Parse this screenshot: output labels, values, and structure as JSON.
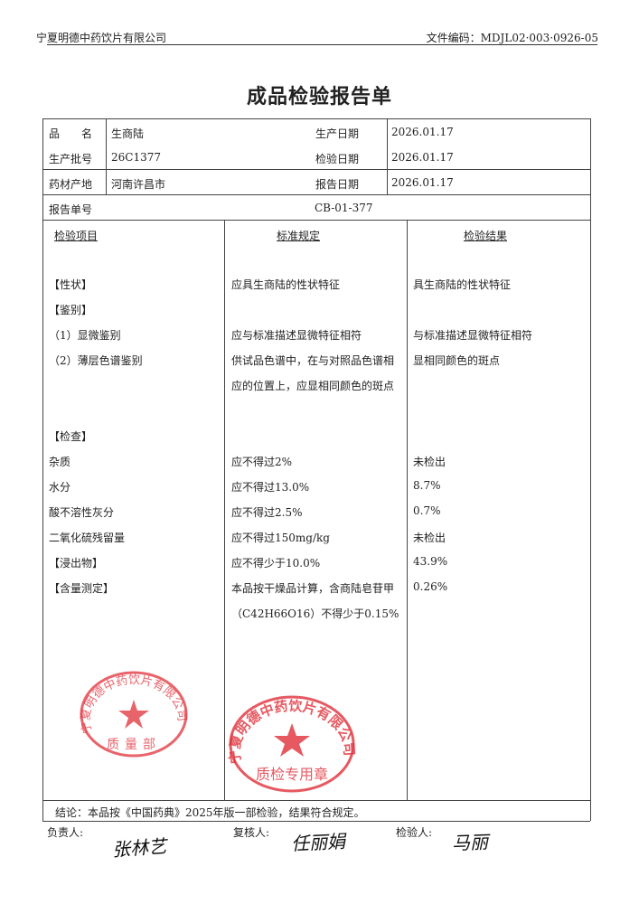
{
  "header": {
    "company": "宁夏明德中药饮片有限公司",
    "doc_code": "文件编码：MDJL02·003·0926-05"
  },
  "title": "成品检验报告单",
  "info": {
    "name_label": "品　　名",
    "name": "生商陆",
    "batch_label": "生产批号",
    "batch": "26C1377",
    "origin_label": "药材产地",
    "origin": "河南许昌市",
    "prod_date_label": "生产日期",
    "prod_date": "2026.01.17",
    "test_date_label": "检验日期",
    "test_date": "2026.01.17",
    "report_date_label": "报告日期",
    "report_date": "2026.01.17",
    "report_no_label": "报告单号",
    "report_no": "CB-01-377"
  },
  "columns": [
    "检验项目",
    "标准规定",
    "检验结果"
  ],
  "rows": [
    {
      "item": "【性状】",
      "standard": "应具生商陆的性状特征",
      "result": "具生商陆的性状特征"
    },
    {
      "item": "【鉴别】",
      "standard": "",
      "result": ""
    },
    {
      "item": "（1）显微鉴别",
      "standard": "应与标准描述显微特征相符",
      "result": "与标准描述显微特征相符"
    },
    {
      "item": "（2）薄层色谱鉴别",
      "standard": "供试品色谱中，在与对照品色谱相",
      "result": "显相同颜色的斑点"
    },
    {
      "item": "",
      "standard": "应的位置上，应显相同颜色的斑点",
      "result": ""
    },
    {
      "item": "【检查】",
      "standard": "",
      "result": ""
    },
    {
      "item": "杂质",
      "standard": "应不得过2%",
      "result": "未检出"
    },
    {
      "item": "水分",
      "standard": "应不得过13.0%",
      "result": "8.7%"
    },
    {
      "item": "酸不溶性灰分",
      "standard": "应不得过2.5%",
      "result": "0.7%"
    },
    {
      "item": "二氧化硫残留量",
      "standard": "应不得过150mg/kg",
      "result": "未检出"
    },
    {
      "item": "【浸出物】",
      "standard": "应不得少于10.0%",
      "result": "43.9%"
    },
    {
      "item": "【含量测定】",
      "standard": "本品按干燥品计算，含商陆皂苷甲",
      "result": "0.26%"
    },
    {
      "item": "",
      "standard": "（C42H66O16）不得少于0.15%",
      "result": ""
    }
  ],
  "conclusion": "结论：本品按《中国药典》2025年版一部检验，结果符合规定。",
  "signatures": {
    "responsible_label": "负责人:",
    "responsible": "张林艺",
    "reviewer_label": "复核人:",
    "reviewer": "任丽娟",
    "inspector_label": "检验人:",
    "inspector": "马丽"
  },
  "stamps": {
    "quality_dept": {
      "text": "宁夏明德中药饮片有限公司",
      "sub": "质量部",
      "color": "#e0303a"
    },
    "qc_seal": {
      "text": "宁夏明德中药饮片有限公司",
      "sub": "质检专用章",
      "color": "#e0303a"
    }
  }
}
